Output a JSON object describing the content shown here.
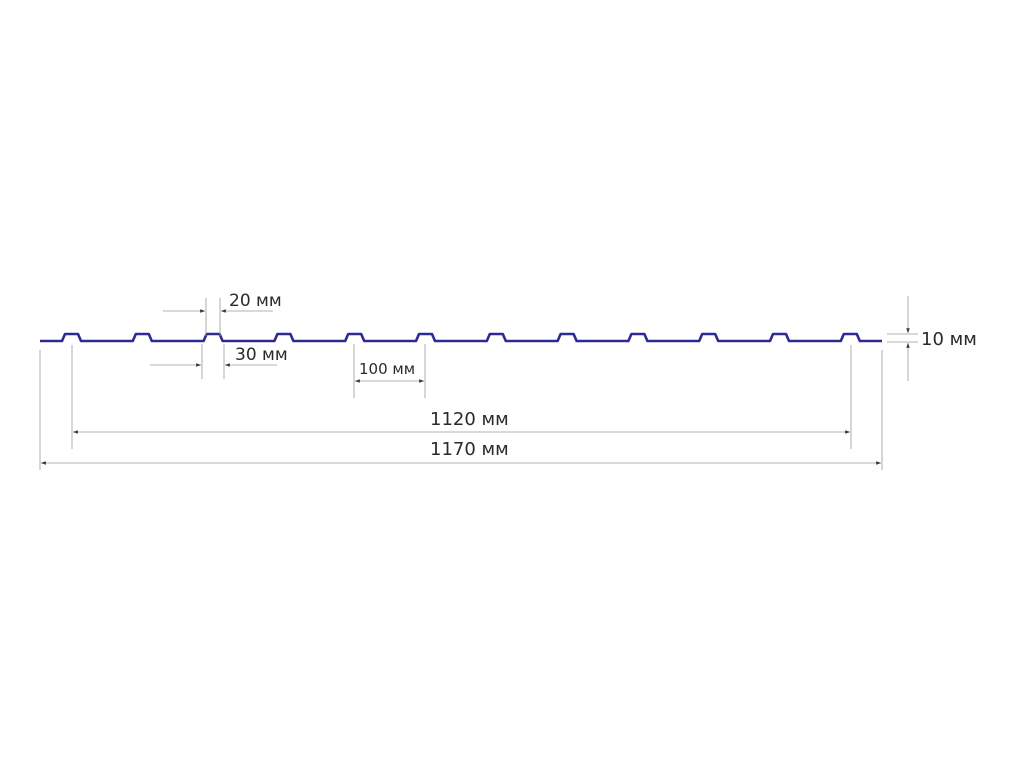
{
  "diagram": {
    "profile_color": "#2e2a93",
    "dimension_color": "#9a9a9a",
    "rib_count": 12,
    "labels": {
      "rib_top_width": "20 мм",
      "rib_bottom_width": "30 мм",
      "rib_pitch": "100 мм",
      "rib_height": "10 мм",
      "useful_width": "1120 мм",
      "total_width": "1170 мм"
    }
  }
}
